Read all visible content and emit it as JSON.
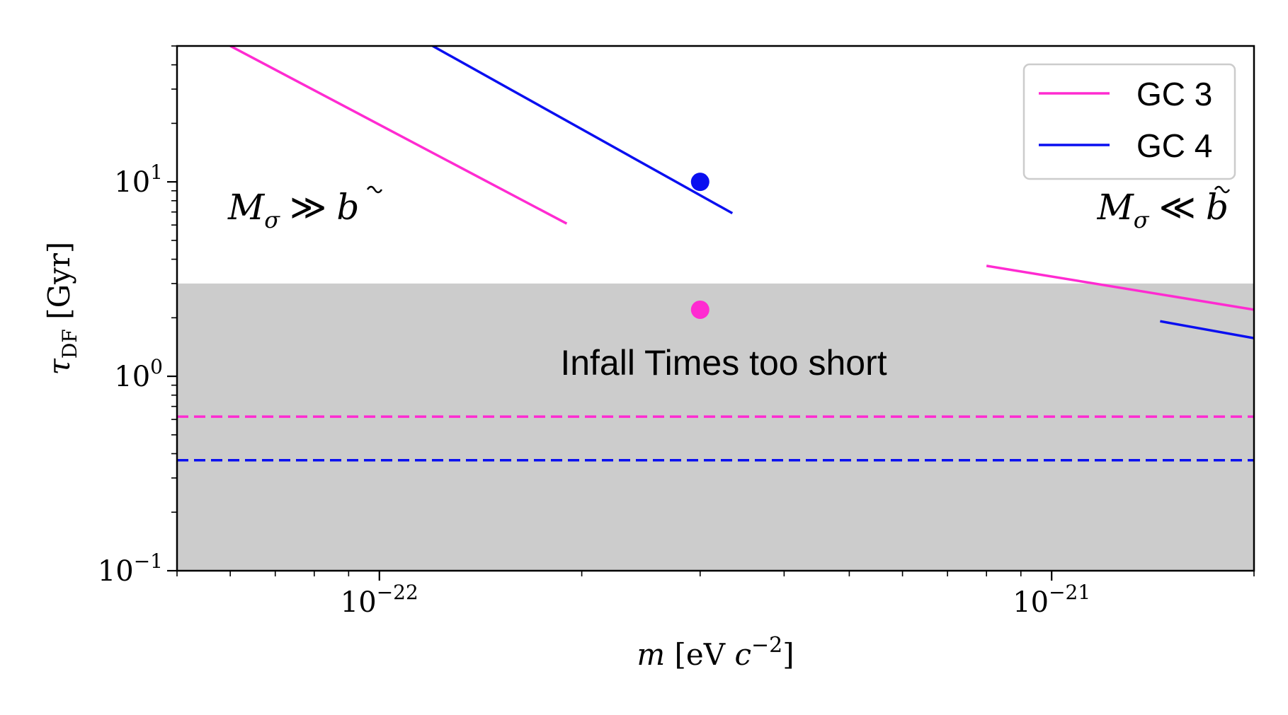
{
  "chart_data": {
    "type": "line",
    "xscale": "log",
    "yscale": "log",
    "xlim": [
      5e-23,
      2e-21
    ],
    "ylim": [
      0.1,
      50
    ],
    "xlabel": "m [eV c^-2]",
    "ylabel": "τ_DF [Gyr]",
    "x_ticks": [
      {
        "value": 1e-22,
        "base": "10",
        "exp": "−22"
      },
      {
        "value": 1e-21,
        "base": "10",
        "exp": "−21"
      }
    ],
    "y_ticks": [
      {
        "value": 0.1,
        "base": "10",
        "exp": "−1"
      },
      {
        "value": 1,
        "base": "10",
        "exp": "0"
      },
      {
        "value": 10,
        "base": "10",
        "exp": "1"
      }
    ],
    "shaded_region": {
      "y_range": [
        0.1,
        3.0
      ],
      "color": "#cccccc",
      "label": "Infall Times too short"
    },
    "series": [
      {
        "name": "GC 3",
        "color": "#ff2bd1",
        "segments": [
          {
            "x": [
              6e-23,
              1.9e-22
            ],
            "y": [
              50,
              6.1
            ]
          },
          {
            "x": [
              8e-22,
              2e-21
            ],
            "y": [
              3.7,
              2.2
            ]
          }
        ],
        "dashed_level": 0.62,
        "marker": {
          "x": 3e-22,
          "y": 2.2
        }
      },
      {
        "name": "GC 4",
        "color": "#0a0ff0",
        "segments": [
          {
            "x": [
              1.2e-22,
              3.35e-22
            ],
            "y": [
              50,
              6.9
            ]
          },
          {
            "x": [
              1.45e-21,
              2e-21
            ],
            "y": [
              1.92,
              1.57
            ]
          }
        ],
        "dashed_level": 0.37,
        "marker": {
          "x": 3e-22,
          "y": 10.0
        }
      }
    ],
    "annotations": [
      {
        "text_main": "M",
        "sub": "σ",
        "rel": "≫",
        "rhs": "b",
        "position": "upper-left"
      },
      {
        "text_main": "M",
        "sub": "σ",
        "rel": "≪",
        "rhs": "b",
        "position": "upper-right"
      }
    ],
    "legend": {
      "placement": "top-right"
    }
  }
}
